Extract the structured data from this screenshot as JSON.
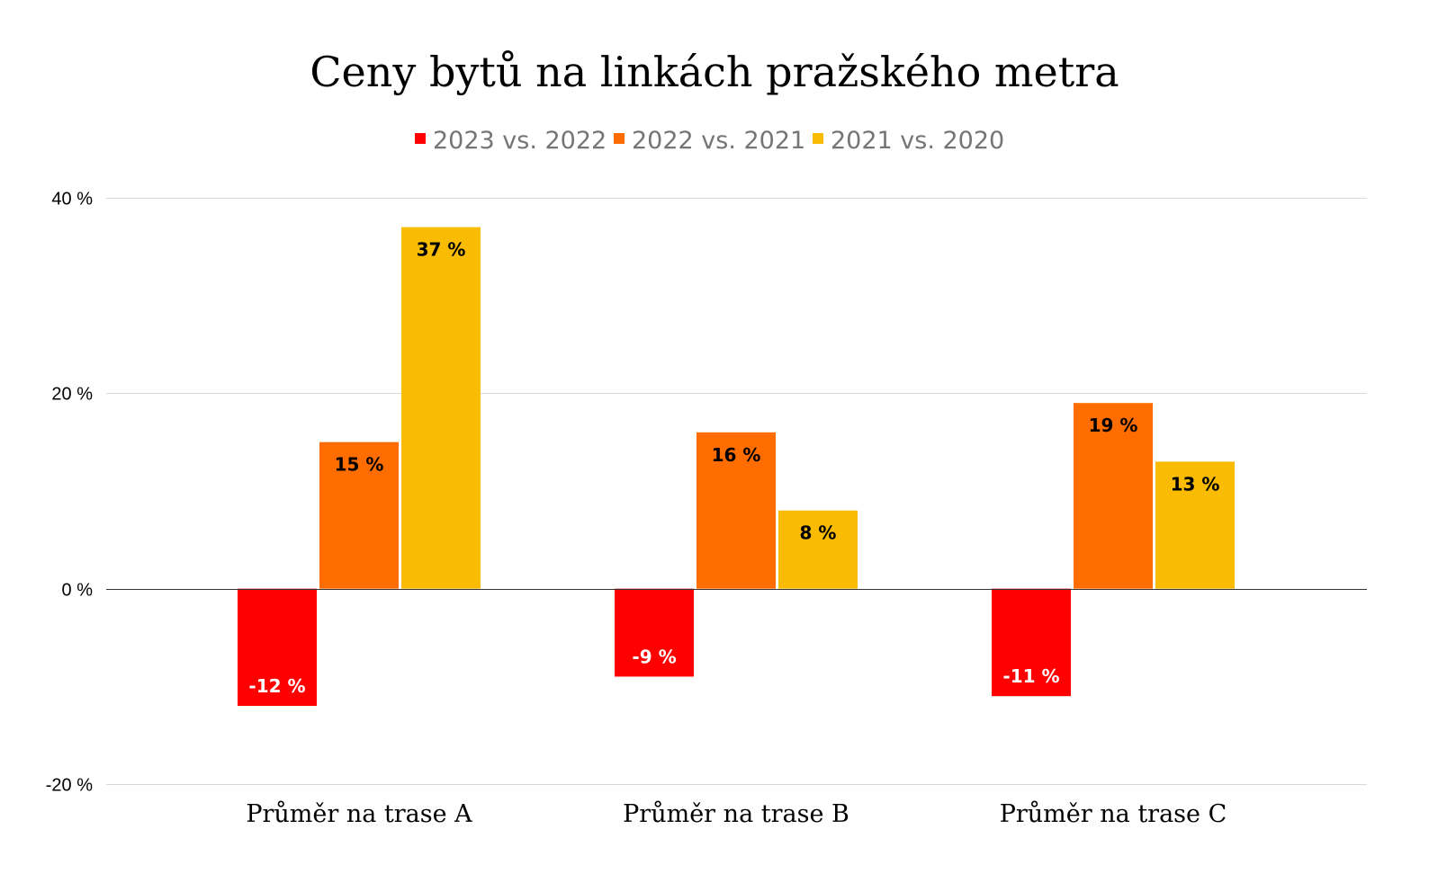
{
  "chart_data": {
    "type": "bar",
    "title": "Ceny bytů na linkách pražského metra",
    "categories": [
      "Průměr na trase A",
      "Průměr na trase B",
      "Průměr na trase C"
    ],
    "series": [
      {
        "name": "2023 vs. 2022",
        "color": "#ff0000",
        "label_color": "#ffffff",
        "values": [
          -12,
          -9,
          -11
        ],
        "labels": [
          "-12 %",
          "-9 %",
          "-11 %"
        ]
      },
      {
        "name": "2022 vs. 2021",
        "color": "#ff6d00",
        "label_color": "#000000",
        "values": [
          15,
          16,
          19
        ],
        "labels": [
          "15 %",
          "16 %",
          "19 %"
        ]
      },
      {
        "name": "2021 vs. 2020",
        "color": "#f9bc02",
        "label_color": "#000000",
        "values": [
          37,
          8,
          13
        ],
        "labels": [
          "37 %",
          "8 %",
          "13 %"
        ]
      }
    ],
    "ylim": [
      -20,
      40
    ],
    "yticks": [
      40,
      20,
      0,
      -20
    ],
    "ytick_labels": [
      "40 %",
      "20 %",
      "0 %",
      "-20 %"
    ],
    "xlabel": "",
    "ylabel": "",
    "grid": true,
    "legend_position": "top-center"
  }
}
